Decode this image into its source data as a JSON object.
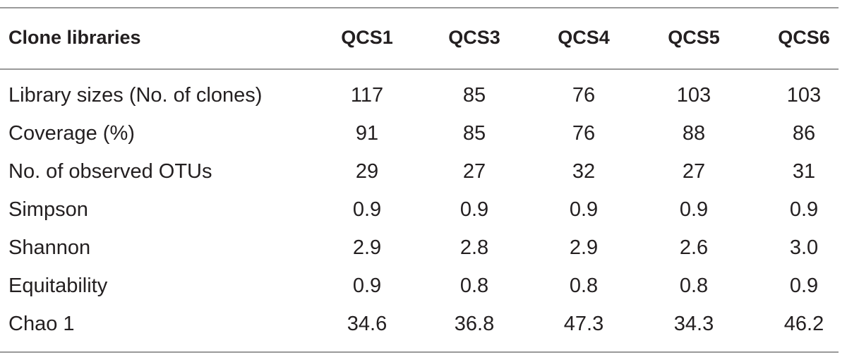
{
  "table": {
    "headers": [
      "Clone libraries",
      "QCS1",
      "QCS3",
      "QCS4",
      "QCS5",
      "QCS6"
    ],
    "rows": [
      [
        "Library sizes (No. of clones)",
        "117",
        "85",
        "76",
        "103",
        "103"
      ],
      [
        "Coverage (%)",
        "91",
        "85",
        "76",
        "88",
        "86"
      ],
      [
        "No. of observed OTUs",
        "29",
        "27",
        "32",
        "27",
        "31"
      ],
      [
        "Simpson",
        "0.9",
        "0.9",
        "0.9",
        "0.9",
        "0.9"
      ],
      [
        "Shannon",
        "2.9",
        "2.8",
        "2.9",
        "2.6",
        "3.0"
      ],
      [
        "Equitability",
        "0.9",
        "0.8",
        "0.8",
        "0.8",
        "0.9"
      ],
      [
        "Chao 1",
        "34.6",
        "36.8",
        "47.3",
        "34.3",
        "46.2"
      ]
    ]
  }
}
